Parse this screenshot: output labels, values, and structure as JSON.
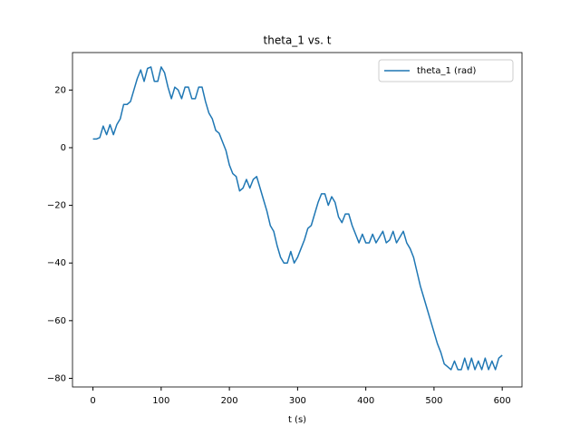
{
  "chart_data": {
    "type": "line",
    "title": "theta_1 vs. t",
    "x_label": "t (s)",
    "x": [
      0,
      5,
      10,
      15,
      20,
      25,
      30,
      35,
      40,
      45,
      50,
      55,
      60,
      65,
      70,
      75,
      80,
      85,
      90,
      95,
      100,
      105,
      110,
      115,
      120,
      125,
      130,
      135,
      140,
      145,
      150,
      155,
      160,
      165,
      170,
      175,
      180,
      185,
      190,
      195,
      200,
      205,
      210,
      215,
      220,
      225,
      230,
      235,
      240,
      245,
      250,
      255,
      260,
      265,
      270,
      275,
      280,
      285,
      290,
      295,
      300,
      305,
      310,
      315,
      320,
      325,
      330,
      335,
      340,
      345,
      350,
      355,
      360,
      365,
      370,
      375,
      380,
      385,
      390,
      395,
      400,
      405,
      410,
      415,
      420,
      425,
      430,
      435,
      440,
      445,
      450,
      455,
      460,
      465,
      470,
      475,
      480,
      485,
      490,
      495,
      500,
      505,
      510,
      515,
      520,
      525,
      530,
      535,
      540,
      545,
      550,
      555,
      560,
      565,
      570,
      575,
      580,
      585,
      590,
      595,
      600
    ],
    "series": [
      {
        "name": "theta_1 (rad)",
        "color": "#1f77b4",
        "values": [
          3,
          3,
          3.5,
          7.5,
          4.5,
          8,
          4.5,
          8,
          10,
          15,
          15,
          16,
          20,
          24,
          27,
          23,
          27.5,
          28,
          23,
          23,
          28,
          26,
          21,
          17,
          21,
          20,
          17,
          21,
          21,
          17,
          17,
          21,
          21,
          16,
          12,
          10,
          6,
          5,
          2,
          -1,
          -6,
          -9,
          -10,
          -15,
          -14,
          -11,
          -14,
          -11,
          -10,
          -14,
          -18,
          -22,
          -27,
          -29,
          -34,
          -38,
          -40,
          -40,
          -36,
          -40,
          -38,
          -35,
          -32,
          -28,
          -27,
          -23,
          -19,
          -16,
          -16,
          -20,
          -17,
          -19,
          -24,
          -26,
          -23,
          -23,
          -27,
          -30,
          -33,
          -30,
          -33,
          -33,
          -30,
          -33,
          -31,
          -29,
          -33,
          -32,
          -29,
          -33,
          -31,
          -29,
          -33,
          -35,
          -38,
          -43,
          -48,
          -52,
          -56,
          -60,
          -64,
          -68,
          -71,
          -75,
          -76,
          -77,
          -74,
          -77,
          -77,
          -73,
          -77,
          -73,
          -77,
          -74,
          -77,
          -73,
          -77,
          -74,
          -77,
          -73,
          -72
        ]
      }
    ],
    "xlim": [
      -30,
      629
    ],
    "ylim": [
      -83,
      33
    ],
    "xticks": [
      0,
      100,
      200,
      300,
      400,
      500,
      600
    ],
    "yticks": [
      {
        "value": -80,
        "label": "−80"
      },
      {
        "value": -60,
        "label": "−60"
      },
      {
        "value": -40,
        "label": "−40"
      },
      {
        "value": -20,
        "label": "−20"
      },
      0,
      20
    ],
    "legend": "upper right"
  }
}
